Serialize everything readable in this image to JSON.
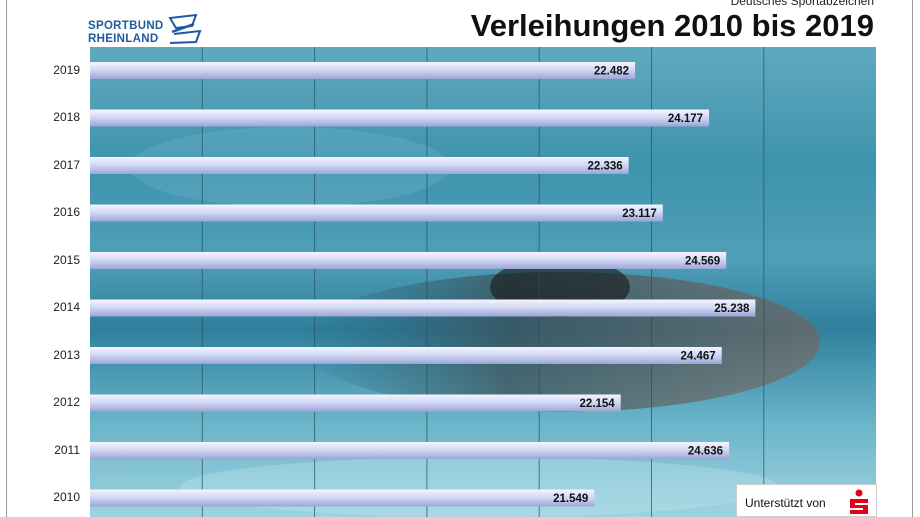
{
  "header": {
    "supertitle": "Deutsches Sportabzeichen",
    "title": "Verleihungen 2010 bis 2019"
  },
  "logo": {
    "line1": "SPORTBUND",
    "line2": "RHEINLAND"
  },
  "sponsor": {
    "label": "Unterstützt von",
    "logo_icon": "sparkasse-s-icon",
    "logo_color": "#e2001a"
  },
  "colors": {
    "logo_blue": "#1e5a9c",
    "bar_light": "#eef0ff",
    "bar_dark": "#9aa6d6"
  },
  "chart_data": {
    "type": "bar",
    "orientation": "horizontal",
    "title": "Verleihungen 2010 bis 2019",
    "categories": [
      "2019",
      "2018",
      "2017",
      "2016",
      "2015",
      "2014",
      "2013",
      "2012",
      "2011",
      "2010"
    ],
    "values": [
      22482,
      24177,
      22336,
      23117,
      24569,
      25238,
      24467,
      22154,
      24636,
      21549
    ],
    "value_labels": [
      "22.482",
      "24.177",
      "22.336",
      "23.117",
      "24.569",
      "25.238",
      "24.467",
      "22.154",
      "24.636",
      "21.549"
    ],
    "xlim": [
      10000,
      28000
    ],
    "grid": true
  }
}
